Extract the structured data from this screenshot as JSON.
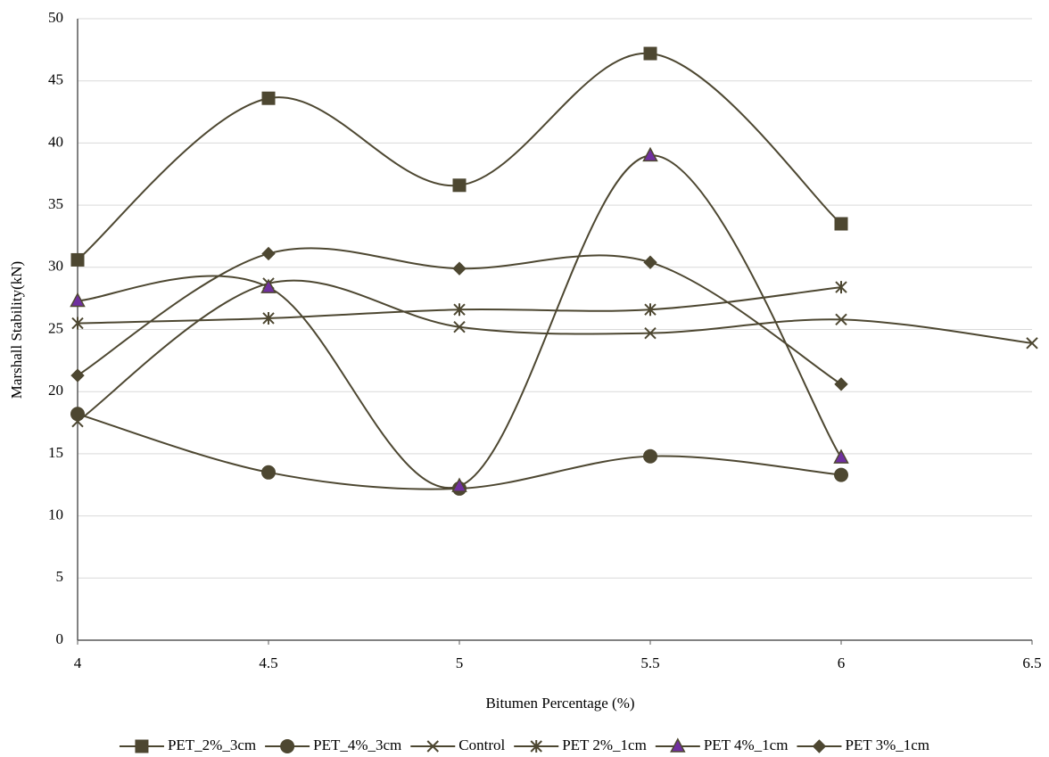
{
  "chart_data": {
    "type": "line",
    "x_label": "Bitumen Percentage (%)",
    "y_label": "Marshall Stability(kN)",
    "x": [
      4,
      4.5,
      5,
      5.5,
      6,
      6.5
    ],
    "xlim": [
      4,
      6.5
    ],
    "xticks": [
      4,
      4.5,
      5,
      5.5,
      6,
      6.5
    ],
    "ylim": [
      0,
      50
    ],
    "yticks": [
      0,
      5,
      10,
      15,
      20,
      25,
      30,
      35,
      40,
      45,
      50
    ],
    "grid": true,
    "smooth": true,
    "legend": "bottom",
    "series": [
      {
        "name": "PET_2%_3cm",
        "color": "#4d4731",
        "marker": "square",
        "values": [
          30.6,
          43.6,
          36.6,
          47.2,
          33.5,
          null
        ]
      },
      {
        "name": "PET_4%_3cm",
        "color": "#4d4731",
        "marker": "circle",
        "values": [
          18.2,
          13.5,
          12.2,
          14.8,
          13.3,
          null
        ]
      },
      {
        "name": "Control",
        "color": "#4d4731",
        "marker": "x",
        "values": [
          17.6,
          28.7,
          25.2,
          24.7,
          25.8,
          23.9
        ]
      },
      {
        "name": "PET 2%_1cm",
        "color": "#4d4731",
        "marker": "asterisk",
        "values": [
          25.5,
          25.9,
          26.6,
          26.6,
          28.4,
          null
        ]
      },
      {
        "name": "PET 4%_1cm",
        "color": "#4d4731",
        "marker_fill": "#7030a0",
        "marker": "triangle",
        "values": [
          27.3,
          28.4,
          12.4,
          39.0,
          14.7,
          null
        ]
      },
      {
        "name": "PET 3%_1cm",
        "color": "#4d4731",
        "marker": "diamond",
        "values": [
          21.3,
          31.1,
          29.9,
          30.4,
          20.6,
          null
        ]
      }
    ]
  }
}
